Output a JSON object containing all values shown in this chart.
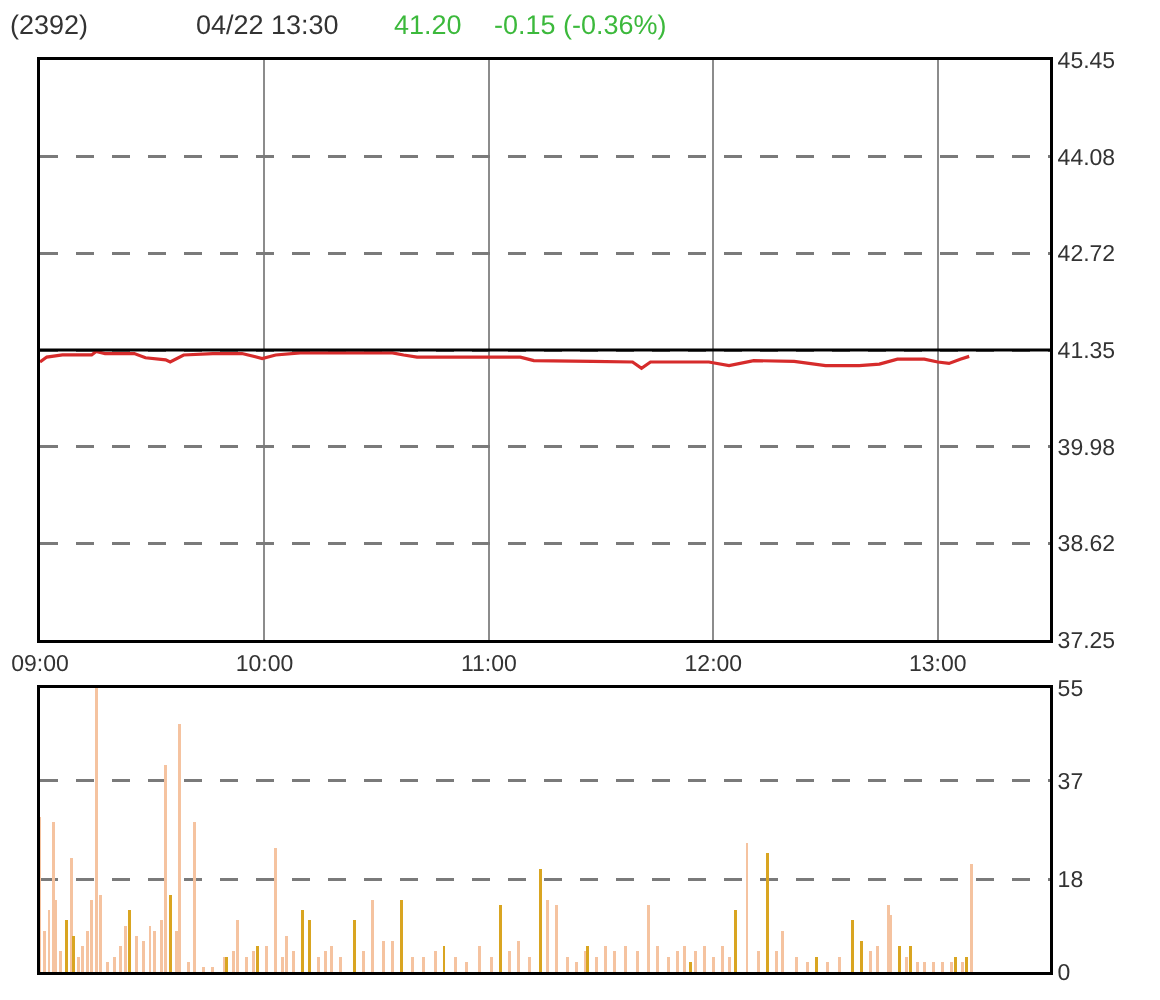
{
  "chart_data": [
    {
      "type": "line",
      "title": "(2392)",
      "subtitle": "04/22 13:30",
      "annotations": [
        "41.20",
        "-0.15 (-0.36%)"
      ],
      "x": [
        9.0,
        9.03,
        9.1,
        9.23,
        9.25,
        9.29,
        9.42,
        9.47,
        9.56,
        9.58,
        9.64,
        9.77,
        9.9,
        9.99,
        10.05,
        10.16,
        10.57,
        10.62,
        10.68,
        11.14,
        11.2,
        11.46,
        11.64,
        11.68,
        11.72,
        11.98,
        12.07,
        12.18,
        12.36,
        12.5,
        12.65,
        12.74,
        12.82,
        12.94,
        13.0,
        13.05,
        13.1,
        13.14
      ],
      "series": [
        {
          "color": "#d62b2b",
          "values": [
            41.18,
            41.25,
            41.28,
            41.28,
            41.33,
            41.3,
            41.3,
            41.24,
            41.21,
            41.18,
            41.28,
            41.3,
            41.3,
            41.23,
            41.28,
            41.31,
            41.31,
            41.28,
            41.25,
            41.25,
            41.2,
            41.19,
            41.18,
            41.09,
            41.18,
            41.18,
            41.13,
            41.2,
            41.19,
            41.13,
            41.13,
            41.15,
            41.22,
            41.22,
            41.18,
            41.16,
            41.22,
            41.26
          ]
        }
      ],
      "xlim": [
        9,
        13.5
      ],
      "xticks": [
        {
          "value": 9,
          "label": "09:00"
        },
        {
          "value": 10,
          "label": "10:00"
        },
        {
          "value": 11,
          "label": "11:00"
        },
        {
          "value": 12,
          "label": "12:00"
        },
        {
          "value": 13,
          "label": "13:00"
        }
      ],
      "ylim": [
        37.25,
        45.45
      ],
      "yticks": [
        37.25,
        38.62,
        39.98,
        41.35,
        42.72,
        44.08,
        45.45
      ],
      "grid": true,
      "ref_lines": [
        {
          "axis": "y",
          "value": 41.35,
          "color": "#000000"
        }
      ]
    },
    {
      "type": "bar",
      "series": [
        {
          "color": "#f5c3a0",
          "x": [
            9.0,
            9.02,
            9.04,
            9.06,
            9.07,
            9.09,
            9.14,
            9.17,
            9.19,
            9.21,
            9.23,
            9.25,
            9.27,
            9.3,
            9.33,
            9.36,
            9.38,
            9.43,
            9.46,
            9.49,
            9.51,
            9.54,
            9.56,
            9.61,
            9.62,
            9.66,
            9.69,
            9.73,
            9.77,
            9.82,
            9.86,
            9.88,
            9.92,
            9.95,
            10.01,
            10.05,
            10.08,
            10.1,
            10.13,
            10.24,
            10.27,
            10.3,
            10.34,
            10.44,
            10.48,
            10.53,
            10.57,
            10.66,
            10.71,
            10.76,
            10.85,
            10.9,
            10.96,
            11.01,
            11.09,
            11.13,
            11.18,
            11.26,
            11.3,
            11.35,
            11.39,
            11.43,
            11.48,
            11.52,
            11.56,
            11.61,
            11.66,
            11.71,
            11.75,
            11.8,
            11.84,
            11.87,
            11.92,
            11.96,
            12.0,
            12.04,
            12.07,
            12.15,
            12.2,
            12.28,
            12.31,
            12.37,
            12.42,
            12.51,
            12.56,
            12.7,
            12.73,
            12.78,
            12.79,
            12.86,
            12.91,
            12.94,
            12.98,
            13.02,
            13.06,
            13.11,
            13.15
          ],
          "values": [
            30,
            8,
            12,
            29,
            14,
            4,
            22,
            3,
            5,
            8,
            14,
            55,
            15,
            2,
            3,
            5,
            9,
            7,
            6,
            9,
            8,
            10,
            40,
            8,
            48,
            2,
            29,
            1,
            1,
            3,
            4,
            10,
            3,
            4,
            5,
            24,
            3,
            7,
            4,
            3,
            4,
            5,
            3,
            4,
            14,
            6,
            6,
            3,
            3,
            4,
            3,
            2,
            5,
            3,
            4,
            6,
            3,
            14,
            13,
            3,
            2,
            4,
            3,
            5,
            4,
            5,
            4,
            13,
            5,
            3,
            4,
            5,
            4,
            5,
            3,
            5,
            3,
            25,
            4,
            4,
            8,
            3,
            2,
            2,
            3,
            4,
            5,
            13,
            11,
            3,
            2,
            2,
            2,
            2,
            2,
            2,
            21
          ]
        },
        {
          "color": "#d9a521",
          "x": [
            9.12,
            9.15,
            9.4,
            9.58,
            9.83,
            9.97,
            10.17,
            10.2,
            10.4,
            10.61,
            10.8,
            11.05,
            11.23,
            11.44,
            11.9,
            12.1,
            12.24,
            12.46,
            12.62,
            12.66,
            12.83,
            12.88,
            13.08,
            13.13
          ],
          "values": [
            10,
            7,
            12,
            15,
            3,
            5,
            12,
            10,
            10,
            14,
            5,
            13,
            20,
            5,
            2,
            12,
            23,
            3,
            10,
            6,
            5,
            5,
            3,
            3
          ]
        }
      ],
      "xlim": [
        9,
        13.5
      ],
      "ylim": [
        0,
        55
      ],
      "yticks": [
        0,
        18,
        37,
        55
      ],
      "grid": "y",
      "tick_labels": "y"
    }
  ]
}
